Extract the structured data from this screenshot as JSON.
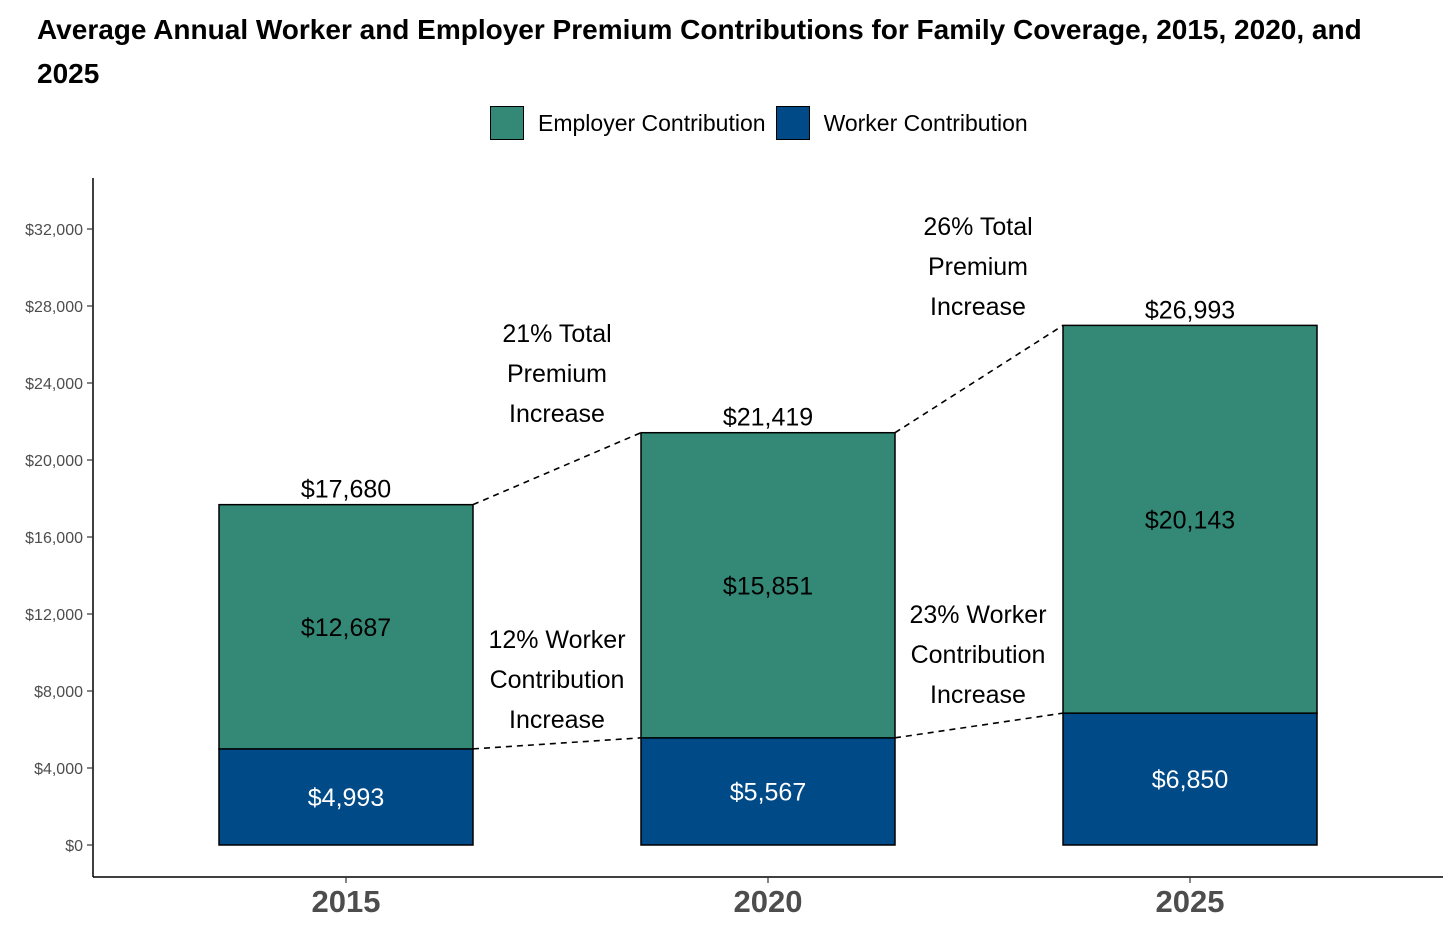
{
  "chart_data": {
    "type": "bar",
    "stacked": true,
    "title": "Average Annual Worker and Employer Premium Contributions for Family Coverage, 2015, 2020, and 2025",
    "categories": [
      "2015",
      "2020",
      "2025"
    ],
    "series": [
      {
        "name": "Worker Contribution",
        "color": "#004A87",
        "values": [
          4993,
          5567,
          6850
        ],
        "labels": [
          "$4,993",
          "$5,567",
          "$6,850"
        ],
        "label_color": "#ffffff"
      },
      {
        "name": "Employer Contribution",
        "color": "#348876",
        "values": [
          12687,
          15851,
          20143
        ],
        "labels": [
          "$12,687",
          "$15,851",
          "$20,143"
        ],
        "label_color": "#000000"
      }
    ],
    "totals": [
      17680,
      21419,
      26993
    ],
    "total_labels": [
      "$17,680",
      "$21,419",
      "$26,993"
    ],
    "legend": [
      "Employer Contribution",
      "Worker Contribution"
    ],
    "ylim": [
      0,
      34500
    ],
    "yticks": [
      0,
      4000,
      8000,
      12000,
      16000,
      20000,
      24000,
      28000,
      32000
    ],
    "ytick_labels": [
      "$0",
      "$4,000",
      "$8,000",
      "$12,000",
      "$16,000",
      "$20,000",
      "$24,000",
      "$28,000",
      "$32,000"
    ],
    "xlabel": "",
    "ylabel": "",
    "annotations": [
      {
        "between": [
          0,
          1
        ],
        "type": "total",
        "lines": [
          "21% Total",
          "Premium",
          "Increase"
        ]
      },
      {
        "between": [
          1,
          2
        ],
        "type": "total",
        "lines": [
          "26% Total",
          "Premium",
          "Increase"
        ]
      },
      {
        "between": [
          0,
          1
        ],
        "type": "worker",
        "lines": [
          "12% Worker",
          "Contribution",
          "Increase"
        ]
      },
      {
        "between": [
          1,
          2
        ],
        "type": "worker",
        "lines": [
          "23% Worker",
          "Contribution",
          "Increase"
        ]
      }
    ]
  }
}
